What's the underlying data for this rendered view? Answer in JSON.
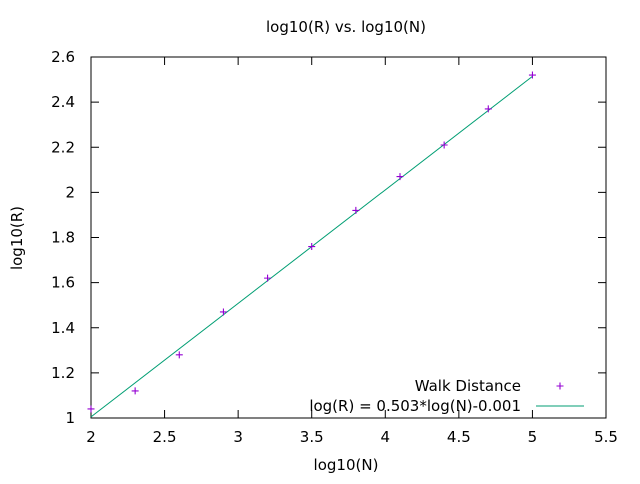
{
  "chart_data": {
    "type": "scatter",
    "title": "log10(R) vs. log10(N)",
    "xlabel": "log10(N)",
    "ylabel": "log10(R)",
    "xlim": [
      2,
      5.5
    ],
    "ylim": [
      1,
      2.6
    ],
    "x_ticks": [
      "2",
      "2.5",
      "3",
      "3.5",
      "4",
      "4.5",
      "5",
      "5.5"
    ],
    "x_tick_values": [
      2,
      2.5,
      3,
      3.5,
      4,
      4.5,
      5,
      5.5
    ],
    "y_ticks": [
      "1",
      "1.2",
      "1.4",
      "1.6",
      "1.8",
      "2",
      "2.2",
      "2.4",
      "2.6"
    ],
    "y_tick_values": [
      1,
      1.2,
      1.4,
      1.6,
      1.8,
      2,
      2.2,
      2.4,
      2.6
    ],
    "grid": false,
    "legend_position": "bottom-right",
    "series": [
      {
        "name": "Walk Distance",
        "kind": "points",
        "marker": "plus",
        "color": "#9400d3",
        "x": [
          2.0,
          2.3,
          2.6,
          2.9,
          3.2,
          3.5,
          3.8,
          4.1,
          4.4,
          4.7,
          5.0
        ],
        "y": [
          1.04,
          1.12,
          1.28,
          1.47,
          1.62,
          1.76,
          1.92,
          2.07,
          2.21,
          2.37,
          2.52
        ]
      },
      {
        "name": "log(R) = 0.503*log(N)-0.001",
        "kind": "line",
        "color": "#009e73",
        "slope": 0.503,
        "intercept": -0.001,
        "x_range": [
          2.0,
          5.0
        ]
      }
    ]
  }
}
